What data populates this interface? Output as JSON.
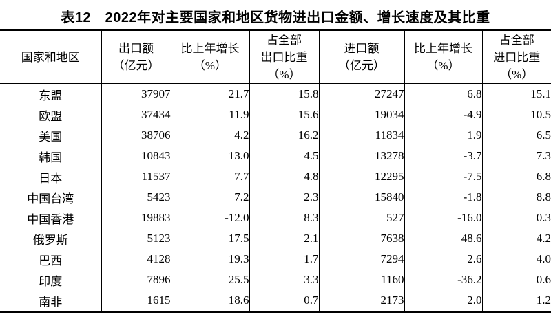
{
  "title": "表12　2022年对主要国家和地区货物进出口金额、增长速度及其比重",
  "colors": {
    "text": "#000000",
    "border": "#000000",
    "background": "#ffffff"
  },
  "table": {
    "headers": [
      {
        "lines": [
          "国家和地区"
        ]
      },
      {
        "lines": [
          "出口额",
          "（亿元）"
        ]
      },
      {
        "lines": [
          "比上年增长",
          "（%）"
        ]
      },
      {
        "lines": [
          "占全部",
          "出口比重",
          "（%）"
        ]
      },
      {
        "lines": [
          "进口额",
          "（亿元）"
        ]
      },
      {
        "lines": [
          "比上年增长",
          "（%）"
        ]
      },
      {
        "lines": [
          "占全部",
          "进口比重",
          "（%）"
        ]
      }
    ],
    "rows": [
      [
        "东盟",
        "37907",
        "21.7",
        "15.8",
        "27247",
        "6.8",
        "15.1"
      ],
      [
        "欧盟",
        "37434",
        "11.9",
        "15.6",
        "19034",
        "-4.9",
        "10.5"
      ],
      [
        "美国",
        "38706",
        "4.2",
        "16.2",
        "11834",
        "1.9",
        "6.5"
      ],
      [
        "韩国",
        "10843",
        "13.0",
        "4.5",
        "13278",
        "-3.7",
        "7.3"
      ],
      [
        "日本",
        "11537",
        "7.7",
        "4.8",
        "12295",
        "-7.5",
        "6.8"
      ],
      [
        "中国台湾",
        "5423",
        "7.2",
        "2.3",
        "15840",
        "-1.8",
        "8.8"
      ],
      [
        "中国香港",
        "19883",
        "-12.0",
        "8.3",
        "527",
        "-16.0",
        "0.3"
      ],
      [
        "俄罗斯",
        "5123",
        "17.5",
        "2.1",
        "7638",
        "48.6",
        "4.2"
      ],
      [
        "巴西",
        "4128",
        "19.3",
        "1.7",
        "7294",
        "2.6",
        "4.0"
      ],
      [
        "印度",
        "7896",
        "25.5",
        "3.3",
        "1160",
        "-36.2",
        "0.6"
      ],
      [
        "南非",
        "1615",
        "18.6",
        "0.7",
        "2173",
        "2.0",
        "1.2"
      ]
    ]
  }
}
